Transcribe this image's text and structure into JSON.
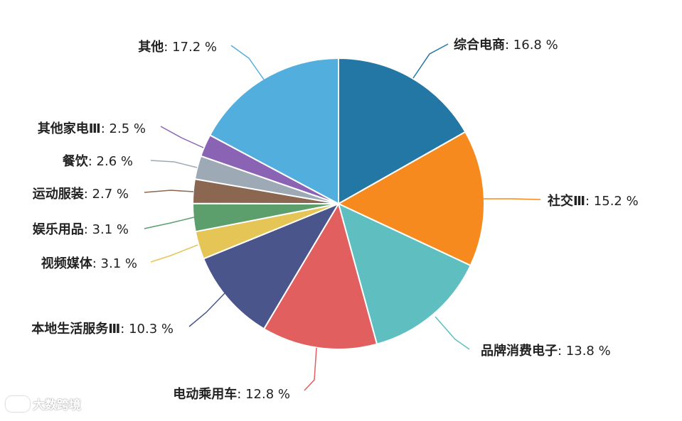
{
  "chart_data": {
    "type": "pie",
    "start_angle_deg": 0,
    "direction": "clockwise",
    "slices": [
      {
        "label": "综合电商",
        "value": 16.8,
        "value_text": "16.8 %",
        "color": "#2377A4",
        "label_side": "right"
      },
      {
        "label": "社交Ⅲ",
        "value": 15.2,
        "value_text": "15.2 %",
        "color": "#F68A1E",
        "label_side": "right"
      },
      {
        "label": "品牌消费电子",
        "value": 13.8,
        "value_text": "13.8 %",
        "color": "#5FBFC0",
        "label_side": "right"
      },
      {
        "label": "电动乘用车",
        "value": 12.8,
        "value_text": "12.8 %",
        "color": "#E15F5F",
        "label_side": "bottom"
      },
      {
        "label": "本地生活服务Ⅲ",
        "value": 10.3,
        "value_text": "10.3 %",
        "color": "#49558B",
        "label_side": "left"
      },
      {
        "label": "视频媒体",
        "value": 3.1,
        "value_text": "3.1 %",
        "color": "#E5C556",
        "label_side": "left"
      },
      {
        "label": "娱乐用品",
        "value": 3.1,
        "value_text": "3.1 %",
        "color": "#5C9E6C",
        "label_side": "left"
      },
      {
        "label": "运动服装",
        "value": 2.7,
        "value_text": "2.7 %",
        "color": "#8B6751",
        "label_side": "left"
      },
      {
        "label": "餐饮",
        "value": 2.6,
        "value_text": "2.6 %",
        "color": "#9DAAB6",
        "label_side": "left"
      },
      {
        "label": "其他家电Ⅲ",
        "value": 2.5,
        "value_text": "2.5 %",
        "color": "#8B63B4",
        "label_side": "left"
      },
      {
        "label": "其他",
        "value": 17.2,
        "value_text": "17.2 %",
        "color": "#52AEDC",
        "label_side": "top-left"
      }
    ]
  },
  "watermark": {
    "text": "大数跨境"
  }
}
